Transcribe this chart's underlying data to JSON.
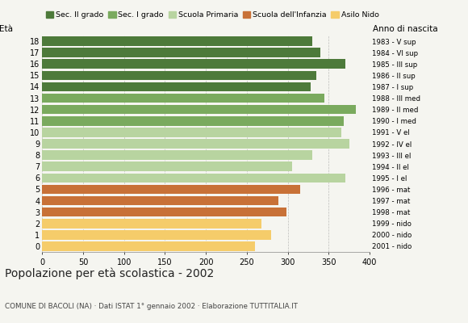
{
  "ages": [
    18,
    17,
    16,
    15,
    14,
    13,
    12,
    11,
    10,
    9,
    8,
    7,
    6,
    5,
    4,
    3,
    2,
    1,
    0
  ],
  "values": [
    330,
    340,
    370,
    335,
    328,
    345,
    383,
    368,
    365,
    375,
    330,
    305,
    370,
    315,
    288,
    298,
    268,
    280,
    260
  ],
  "right_labels": [
    "1983 - V sup",
    "1984 - VI sup",
    "1985 - III sup",
    "1986 - II sup",
    "1987 - I sup",
    "1988 - III med",
    "1989 - II med",
    "1990 - I med",
    "1991 - V el",
    "1992 - IV el",
    "1993 - III el",
    "1994 - II el",
    "1995 - I el",
    "1996 - mat",
    "1997 - mat",
    "1998 - mat",
    "1999 - nido",
    "2000 - nido",
    "2001 - nido"
  ],
  "bar_colors": [
    "#4d7a3a",
    "#4d7a3a",
    "#4d7a3a",
    "#4d7a3a",
    "#4d7a3a",
    "#7aaa5e",
    "#7aaa5e",
    "#7aaa5e",
    "#b8d4a0",
    "#b8d4a0",
    "#b8d4a0",
    "#b8d4a0",
    "#b8d4a0",
    "#c87137",
    "#c87137",
    "#c87137",
    "#f5cc6a",
    "#f5cc6a",
    "#f5cc6a"
  ],
  "xlim": [
    0,
    400
  ],
  "xticks": [
    0,
    50,
    100,
    150,
    200,
    250,
    300,
    350,
    400
  ],
  "title": "Popolazione per età scolastica - 2002",
  "subtitle": "COMUNE DI BACOLI (NA) · Dati ISTAT 1° gennaio 2002 · Elaborazione TUTTITALIA.IT",
  "label_eta": "Età",
  "label_anno": "Anno di nascita",
  "bg_color": "#f5f5f0",
  "grid_color": "#999999",
  "legend_labels": [
    "Sec. II grado",
    "Sec. I grado",
    "Scuola Primaria",
    "Scuola dell'Infanzia",
    "Asilo Nido"
  ],
  "legend_colors": [
    "#4d7a3a",
    "#7aaa5e",
    "#b8d4a0",
    "#c87137",
    "#f5cc6a"
  ]
}
